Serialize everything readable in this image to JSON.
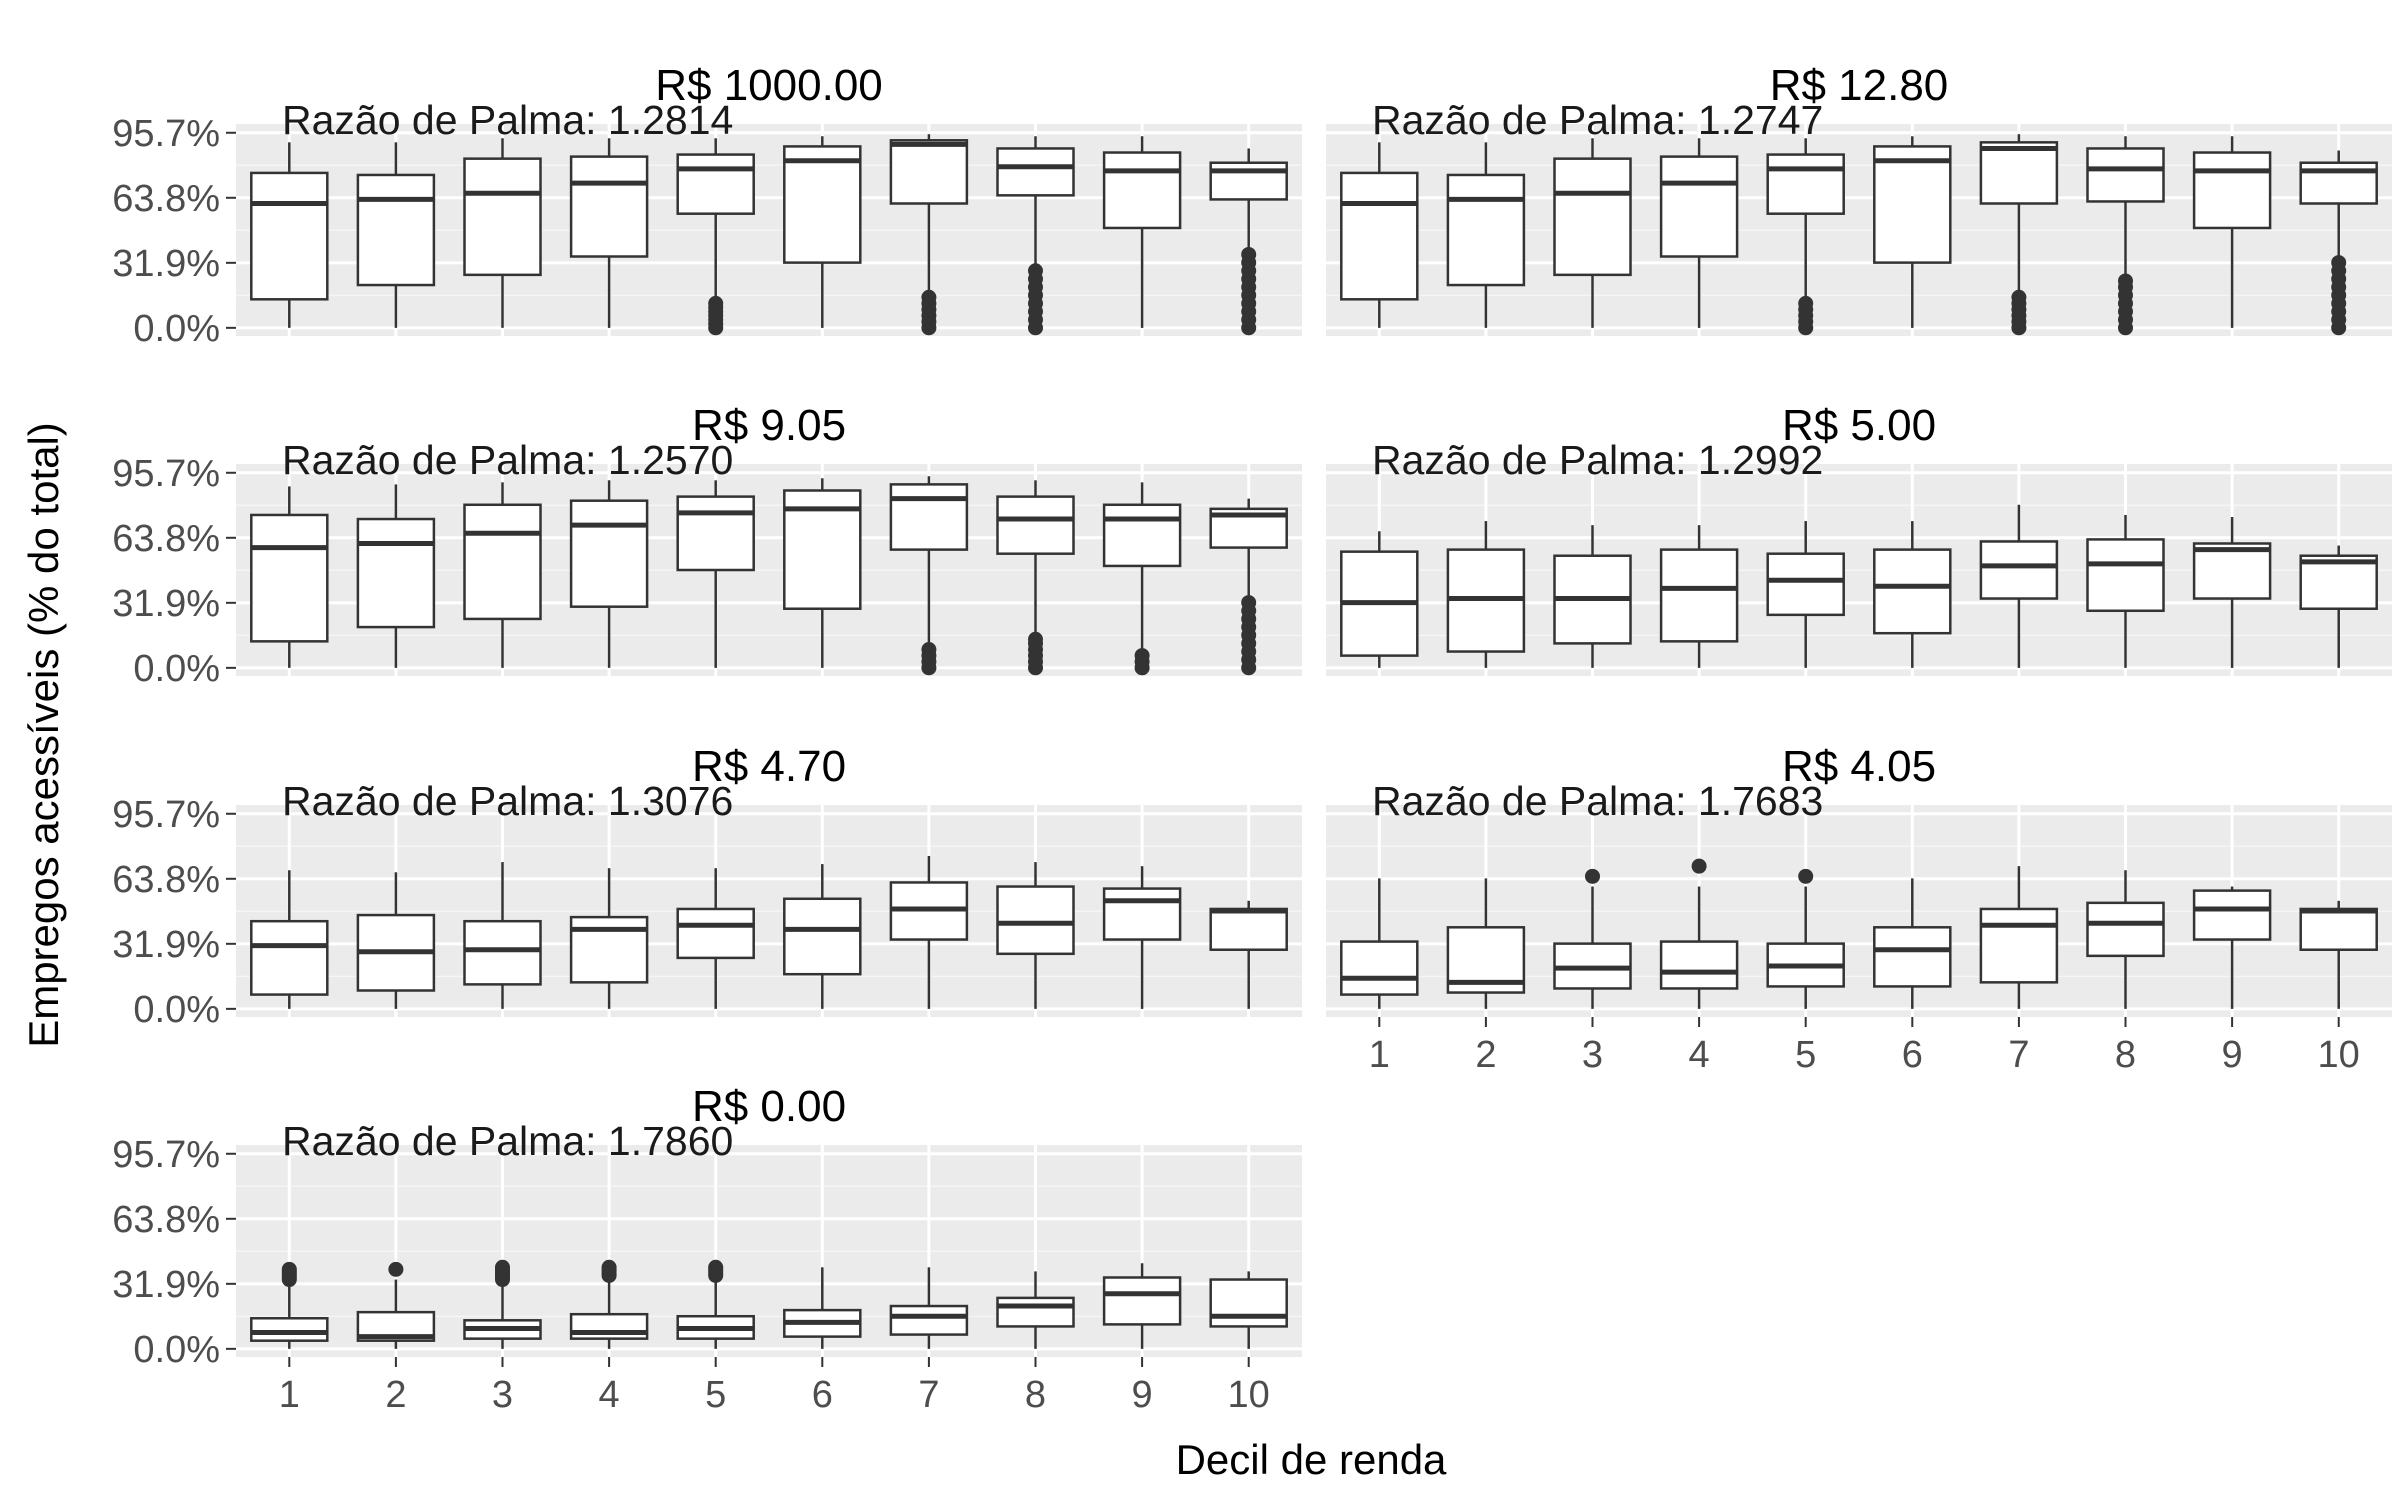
{
  "chart_data": {
    "type": "boxplot",
    "xlabel": "Decil de renda",
    "ylabel": "Empregos acessíveis (% do total)",
    "categories": [
      "1",
      "2",
      "3",
      "4",
      "5",
      "6",
      "7",
      "8",
      "9",
      "10"
    ],
    "y_ticks": [
      "0.0%",
      "31.9%",
      "63.8%",
      "95.7%"
    ],
    "y_tick_values": [
      0,
      31.9,
      63.8,
      95.7
    ],
    "ylim": [
      -4,
      100
    ],
    "grid": true,
    "panels": [
      {
        "title": "R$ 1000.00",
        "annotation": "Razão de Palma: 1.2814",
        "show_x_ticks": false,
        "boxes": [
          {
            "min": 0,
            "q1": 14,
            "median": 61,
            "q3": 76,
            "max": 91,
            "outliers": []
          },
          {
            "min": 0,
            "q1": 21,
            "median": 63,
            "q3": 75,
            "max": 91,
            "outliers": []
          },
          {
            "min": 0,
            "q1": 26,
            "median": 66,
            "q3": 83,
            "max": 93,
            "outliers": []
          },
          {
            "min": 0,
            "q1": 35,
            "median": 71,
            "q3": 84,
            "max": 93,
            "outliers": []
          },
          {
            "min": 14,
            "q1": 56,
            "median": 78,
            "q3": 85,
            "max": 93,
            "outliers": [
              0,
              2,
              4,
              6,
              8,
              10,
              12
            ]
          },
          {
            "min": 0,
            "q1": 32,
            "median": 82,
            "q3": 89,
            "max": 94,
            "outliers": []
          },
          {
            "min": 18,
            "q1": 61,
            "median": 90,
            "q3": 92,
            "max": 95,
            "outliers": [
              0,
              3,
              6,
              9,
              12,
              15
            ]
          },
          {
            "min": 30,
            "q1": 65,
            "median": 79,
            "q3": 88,
            "max": 94,
            "outliers": [
              0,
              4,
              8,
              12,
              16,
              20,
              24,
              28
            ]
          },
          {
            "min": 0,
            "q1": 49,
            "median": 77,
            "q3": 86,
            "max": 94,
            "outliers": []
          },
          {
            "min": 37,
            "q1": 63,
            "median": 77,
            "q3": 81,
            "max": 88,
            "outliers": [
              0,
              4,
              8,
              12,
              16,
              20,
              24,
              28,
              32,
              36
            ]
          }
        ]
      },
      {
        "title": "R$ 12.80",
        "annotation": "Razão de Palma: 1.2747",
        "show_x_ticks": false,
        "boxes": [
          {
            "min": 0,
            "q1": 14,
            "median": 61,
            "q3": 76,
            "max": 91,
            "outliers": []
          },
          {
            "min": 0,
            "q1": 21,
            "median": 63,
            "q3": 75,
            "max": 91,
            "outliers": []
          },
          {
            "min": 0,
            "q1": 26,
            "median": 66,
            "q3": 83,
            "max": 93,
            "outliers": []
          },
          {
            "min": 0,
            "q1": 35,
            "median": 71,
            "q3": 84,
            "max": 93,
            "outliers": []
          },
          {
            "min": 14,
            "q1": 56,
            "median": 78,
            "q3": 85,
            "max": 93,
            "outliers": [
              0,
              3,
              6,
              9,
              12
            ]
          },
          {
            "min": 0,
            "q1": 32,
            "median": 82,
            "q3": 89,
            "max": 94,
            "outliers": []
          },
          {
            "min": 18,
            "q1": 61,
            "median": 88,
            "q3": 91,
            "max": 95,
            "outliers": [
              0,
              3,
              6,
              9,
              12,
              15
            ]
          },
          {
            "min": 24,
            "q1": 62,
            "median": 78,
            "q3": 88,
            "max": 94,
            "outliers": [
              0,
              4,
              8,
              12,
              16,
              20,
              23
            ]
          },
          {
            "min": 0,
            "q1": 49,
            "median": 77,
            "q3": 86,
            "max": 94,
            "outliers": []
          },
          {
            "min": 34,
            "q1": 61,
            "median": 77,
            "q3": 81,
            "max": 87,
            "outliers": [
              0,
              4,
              8,
              12,
              16,
              20,
              24,
              28,
              32
            ]
          }
        ]
      },
      {
        "title": "R$ 9.05",
        "annotation": "Razão de Palma: 1.2570",
        "show_x_ticks": false,
        "boxes": [
          {
            "min": 0,
            "q1": 13,
            "median": 59,
            "q3": 75,
            "max": 89,
            "outliers": []
          },
          {
            "min": 0,
            "q1": 20,
            "median": 61,
            "q3": 73,
            "max": 90,
            "outliers": []
          },
          {
            "min": 0,
            "q1": 24,
            "median": 66,
            "q3": 80,
            "max": 91,
            "outliers": []
          },
          {
            "min": 0,
            "q1": 30,
            "median": 70,
            "q3": 82,
            "max": 92,
            "outliers": []
          },
          {
            "min": 0,
            "q1": 48,
            "median": 76,
            "q3": 84,
            "max": 92,
            "outliers": []
          },
          {
            "min": 0,
            "q1": 29,
            "median": 78,
            "q3": 87,
            "max": 93,
            "outliers": []
          },
          {
            "min": 10,
            "q1": 58,
            "median": 83,
            "q3": 90,
            "max": 94,
            "outliers": [
              0,
              3,
              6,
              9
            ]
          },
          {
            "min": 15,
            "q1": 56,
            "median": 73,
            "q3": 84,
            "max": 92,
            "outliers": [
              0,
              3,
              6,
              9,
              12,
              14
            ]
          },
          {
            "min": 8,
            "q1": 50,
            "median": 73,
            "q3": 80,
            "max": 91,
            "outliers": [
              0,
              3,
              6
            ]
          },
          {
            "min": 34,
            "q1": 59,
            "median": 75,
            "q3": 78,
            "max": 83,
            "outliers": [
              0,
              4,
              8,
              12,
              16,
              20,
              24,
              28,
              32
            ]
          }
        ]
      },
      {
        "title": "R$ 5.00",
        "annotation": "Razão de Palma: 1.2992",
        "show_x_ticks": false,
        "boxes": [
          {
            "min": 0,
            "q1": 6,
            "median": 32,
            "q3": 57,
            "max": 67,
            "outliers": []
          },
          {
            "min": 0,
            "q1": 8,
            "median": 34,
            "q3": 58,
            "max": 72,
            "outliers": []
          },
          {
            "min": 0,
            "q1": 12,
            "median": 34,
            "q3": 55,
            "max": 70,
            "outliers": []
          },
          {
            "min": 0,
            "q1": 13,
            "median": 39,
            "q3": 58,
            "max": 70,
            "outliers": []
          },
          {
            "min": 0,
            "q1": 26,
            "median": 43,
            "q3": 56,
            "max": 72,
            "outliers": []
          },
          {
            "min": 0,
            "q1": 17,
            "median": 40,
            "q3": 58,
            "max": 72,
            "outliers": []
          },
          {
            "min": 0,
            "q1": 34,
            "median": 50,
            "q3": 62,
            "max": 80,
            "outliers": []
          },
          {
            "min": 0,
            "q1": 28,
            "median": 51,
            "q3": 63,
            "max": 75,
            "outliers": []
          },
          {
            "min": 0,
            "q1": 34,
            "median": 58,
            "q3": 61,
            "max": 74,
            "outliers": []
          },
          {
            "min": 0,
            "q1": 29,
            "median": 52,
            "q3": 55,
            "max": 60,
            "outliers": []
          }
        ]
      },
      {
        "title": "R$ 4.70",
        "annotation": "Razão de Palma: 1.3076",
        "show_x_ticks": false,
        "boxes": [
          {
            "min": 0,
            "q1": 7,
            "median": 31,
            "q3": 43,
            "max": 68,
            "outliers": []
          },
          {
            "min": 0,
            "q1": 9,
            "median": 28,
            "q3": 46,
            "max": 67,
            "outliers": []
          },
          {
            "min": 0,
            "q1": 12,
            "median": 29,
            "q3": 43,
            "max": 72,
            "outliers": []
          },
          {
            "min": 0,
            "q1": 13,
            "median": 39,
            "q3": 45,
            "max": 69,
            "outliers": []
          },
          {
            "min": 0,
            "q1": 25,
            "median": 41,
            "q3": 49,
            "max": 69,
            "outliers": []
          },
          {
            "min": 0,
            "q1": 17,
            "median": 39,
            "q3": 54,
            "max": 71,
            "outliers": []
          },
          {
            "min": 0,
            "q1": 34,
            "median": 49,
            "q3": 62,
            "max": 75,
            "outliers": []
          },
          {
            "min": 0,
            "q1": 27,
            "median": 42,
            "q3": 60,
            "max": 72,
            "outliers": []
          },
          {
            "min": 0,
            "q1": 34,
            "median": 53,
            "q3": 59,
            "max": 70,
            "outliers": []
          },
          {
            "min": 0,
            "q1": 29,
            "median": 48,
            "q3": 49,
            "max": 53,
            "outliers": []
          }
        ]
      },
      {
        "title": "R$ 4.05",
        "annotation": "Razão de Palma: 1.7683",
        "show_x_ticks": true,
        "boxes": [
          {
            "min": 0,
            "q1": 7,
            "median": 15,
            "q3": 33,
            "max": 64,
            "outliers": []
          },
          {
            "min": 0,
            "q1": 8,
            "median": 13,
            "q3": 40,
            "max": 64,
            "outliers": []
          },
          {
            "min": 0,
            "q1": 10,
            "median": 20,
            "q3": 32,
            "max": 60,
            "outliers": [
              65
            ]
          },
          {
            "min": 0,
            "q1": 10,
            "median": 18,
            "q3": 33,
            "max": 60,
            "outliers": [
              70
            ]
          },
          {
            "min": 0,
            "q1": 11,
            "median": 21,
            "q3": 32,
            "max": 60,
            "outliers": [
              65
            ]
          },
          {
            "min": 0,
            "q1": 11,
            "median": 29,
            "q3": 40,
            "max": 64,
            "outliers": []
          },
          {
            "min": 0,
            "q1": 13,
            "median": 41,
            "q3": 49,
            "max": 70,
            "outliers": []
          },
          {
            "min": 0,
            "q1": 26,
            "median": 42,
            "q3": 52,
            "max": 68,
            "outliers": []
          },
          {
            "min": 0,
            "q1": 34,
            "median": 49,
            "q3": 58,
            "max": 60,
            "outliers": []
          },
          {
            "min": 0,
            "q1": 29,
            "median": 48,
            "q3": 49,
            "max": 53,
            "outliers": []
          }
        ]
      },
      {
        "title": "R$ 0.00",
        "annotation": "Razão de Palma: 1.7860",
        "show_x_ticks": true,
        "boxes": [
          {
            "min": 0,
            "q1": 4,
            "median": 8,
            "q3": 15,
            "max": 33,
            "outliers": [
              34,
              35,
              36,
              37,
              38,
              39
            ]
          },
          {
            "min": 0,
            "q1": 4,
            "median": 6,
            "q3": 18,
            "max": 34,
            "outliers": [
              39
            ]
          },
          {
            "min": 0,
            "q1": 5,
            "median": 10,
            "q3": 14,
            "max": 33,
            "outliers": [
              34,
              35,
              36,
              37,
              38,
              39,
              40
            ]
          },
          {
            "min": 0,
            "q1": 5,
            "median": 8,
            "q3": 17,
            "max": 34,
            "outliers": [
              36,
              37,
              38,
              39,
              40
            ]
          },
          {
            "min": 0,
            "q1": 5,
            "median": 10,
            "q3": 16,
            "max": 34,
            "outliers": [
              36,
              37,
              38,
              39,
              40
            ]
          },
          {
            "min": 0,
            "q1": 6,
            "median": 13,
            "q3": 19,
            "max": 40,
            "outliers": []
          },
          {
            "min": 0,
            "q1": 7,
            "median": 16,
            "q3": 21,
            "max": 40,
            "outliers": []
          },
          {
            "min": 0,
            "q1": 11,
            "median": 21,
            "q3": 25,
            "max": 38,
            "outliers": []
          },
          {
            "min": 0,
            "q1": 12,
            "median": 27,
            "q3": 35,
            "max": 42,
            "outliers": []
          },
          {
            "min": 0,
            "q1": 11,
            "median": 16,
            "q3": 34,
            "max": 38,
            "outliers": []
          }
        ]
      }
    ]
  }
}
